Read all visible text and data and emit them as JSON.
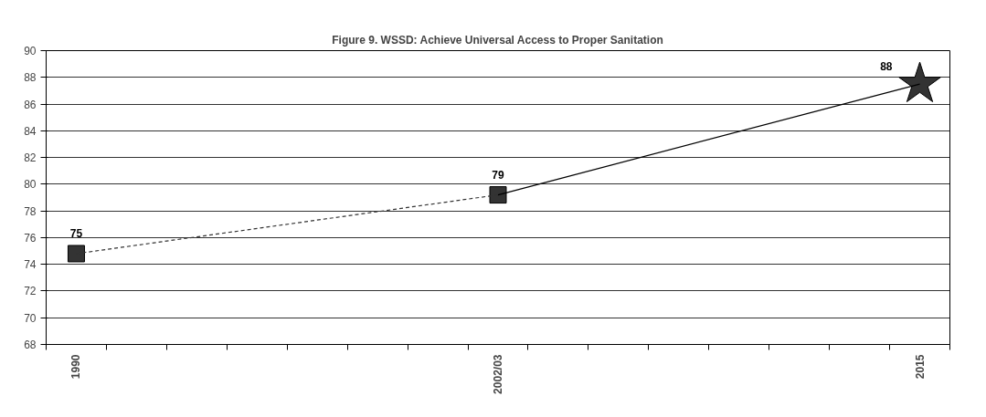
{
  "chart_data": {
    "type": "line",
    "title": "Figure 9. WSSD: Achieve Universal Access to Proper Sanitation",
    "categories": [
      "1990",
      null,
      null,
      null,
      null,
      null,
      null,
      "2002/03",
      null,
      null,
      null,
      null,
      null,
      null,
      "2015"
    ],
    "series": [
      {
        "color": "#333333",
        "line_style": "dashed",
        "marker": "square",
        "values": [
          74.8,
          null,
          null,
          null,
          null,
          null,
          null,
          79.2,
          null,
          null,
          null,
          null,
          null,
          null,
          null
        ],
        "value_labels": [
          "75",
          null,
          null,
          null,
          null,
          null,
          null,
          "79",
          null,
          null,
          null,
          null,
          null,
          null,
          null
        ]
      },
      {
        "color": "#000000",
        "line_style": "solid",
        "marker": "none",
        "values": [
          null,
          null,
          null,
          null,
          null,
          null,
          null,
          79.2,
          null,
          null,
          null,
          null,
          null,
          null,
          87.5
        ]
      },
      {
        "type": "scatter",
        "color": "#333333",
        "marker": "star",
        "values": [
          null,
          null,
          null,
          null,
          null,
          null,
          null,
          null,
          null,
          null,
          null,
          null,
          null,
          null,
          87.5
        ],
        "value_labels": [
          null,
          null,
          null,
          null,
          null,
          null,
          null,
          null,
          null,
          null,
          null,
          null,
          null,
          null,
          "88"
        ]
      }
    ],
    "ylim": [
      68,
      90
    ],
    "yticks": [
      68,
      70,
      72,
      74,
      76,
      78,
      80,
      82,
      84,
      86,
      88,
      90
    ],
    "grid": "y"
  }
}
